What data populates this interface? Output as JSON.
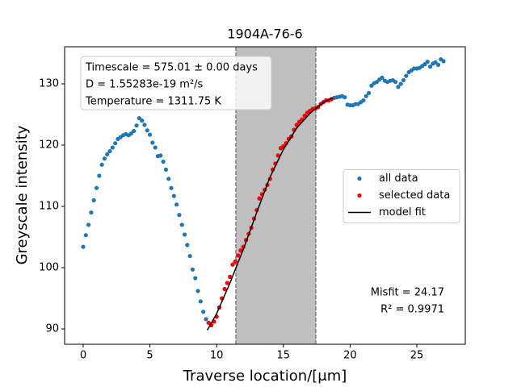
{
  "chart_data": {
    "type": "scatter",
    "title": "1904A-76-6",
    "xlabel": "Traverse location/[μm]",
    "ylabel": "Greyscale intensity",
    "xlim": [
      -1.39,
      28.63
    ],
    "ylim": [
      87.5,
      136.05
    ],
    "xticks": [
      0,
      5,
      10,
      15,
      20,
      25
    ],
    "yticks": [
      90,
      100,
      110,
      120,
      130
    ],
    "span": [
      11.44,
      17.43
    ],
    "annotations": [
      "Timescale = 575.01 ± 0.00 days",
      "D = 1.55283e-19 m²/s",
      "Temperature = 1311.75 K"
    ],
    "stats": [
      "Misfit = 24.17",
      "R² = 0.9971"
    ],
    "legend": "center right",
    "series": [
      {
        "name": "all data",
        "color": "#1f77b4",
        "x": [
          0,
          0.2,
          0.4,
          0.6,
          0.8,
          1.0,
          1.2,
          1.4,
          1.6,
          1.8,
          2.0,
          2.2,
          2.4,
          2.6,
          2.8,
          3.0,
          3.2,
          3.4,
          3.6,
          3.8,
          4.0,
          4.2,
          4.4,
          4.6,
          4.8,
          5.0,
          5.2,
          5.4,
          5.6,
          5.8,
          6.0,
          6.2,
          6.4,
          6.6,
          6.8,
          7.0,
          7.2,
          7.4,
          7.6,
          7.8,
          8.0,
          8.2,
          8.4,
          8.6,
          8.8,
          9.0,
          9.2,
          9.4,
          9.6,
          9.8,
          10.0,
          10.2,
          10.4,
          10.6,
          10.8,
          11.0,
          11.2,
          11.4,
          11.6,
          11.8,
          12.0,
          12.2,
          12.4,
          12.6,
          12.8,
          13.0,
          13.2,
          13.4,
          13.6,
          13.8,
          14.0,
          14.2,
          14.4,
          14.6,
          14.8,
          15.0,
          15.2,
          15.4,
          15.6,
          15.8,
          16.0,
          16.2,
          16.4,
          16.6,
          16.8,
          17.0,
          17.2,
          17.4,
          17.6,
          17.8,
          18.0,
          18.2,
          18.4,
          18.6,
          18.8,
          19.0,
          19.2,
          19.4,
          19.6,
          19.8,
          20.0,
          20.2,
          20.4,
          20.6,
          20.8,
          21.0,
          21.2,
          21.4,
          21.6,
          21.8,
          22.0,
          22.2,
          22.4,
          22.6,
          22.8,
          23.0,
          23.2,
          23.4,
          23.6,
          23.8,
          24.0,
          24.2,
          24.4,
          24.6,
          24.8,
          25.0,
          25.2,
          25.4,
          25.6,
          25.8,
          26.0,
          26.2,
          26.4,
          26.6,
          26.8,
          27.0
        ],
        "values": [
          103.4,
          105.3,
          107,
          109,
          111,
          113,
          115,
          116.8,
          117.8,
          118.5,
          119,
          119.6,
          120.3,
          121,
          121.3,
          121.6,
          121.8,
          121.6,
          121.9,
          122.3,
          123.2,
          124.4,
          124,
          123.3,
          122.4,
          121.7,
          120.4,
          119.6,
          118.2,
          118.3,
          117.3,
          116,
          114.5,
          113,
          111.7,
          110.3,
          108.6,
          107,
          105.4,
          103.7,
          101.9,
          99.7,
          98.3,
          96.2,
          94.5,
          92.8,
          91.6,
          91,
          90.6,
          91.2,
          92,
          93.5,
          95,
          96.5,
          97.5,
          98.5,
          100.5,
          101,
          102,
          102.8,
          103.4,
          104.5,
          105.5,
          106.5,
          108,
          109.4,
          111.3,
          112,
          112.7,
          113.5,
          114.5,
          116,
          117,
          118.3,
          119.5,
          119.8,
          120.3,
          121,
          121.4,
          122.5,
          123.3,
          123.8,
          124.2,
          124.8,
          125.3,
          125.6,
          125.9,
          126,
          126.2,
          126.7,
          127,
          127.3,
          127.3,
          127.5,
          127.7,
          127.8,
          127.9,
          128,
          127.8,
          126.6,
          126.5,
          126.5,
          126.7,
          126.7,
          127,
          127.3,
          128,
          128.5,
          129.7,
          130.1,
          130.3,
          130.7,
          131,
          130.5,
          130.3,
          130.5,
          130.6,
          130.3,
          129.5,
          130,
          130.6,
          131.3,
          131.9,
          132.2,
          132.5,
          132.5,
          132.6,
          132.9,
          133.2,
          133.6,
          132.8,
          133.3,
          133.5,
          133.1,
          134,
          133.7
        ]
      },
      {
        "name": "selected data",
        "color": "#ff0000",
        "x": [
          9.4,
          9.6,
          9.8,
          10.0,
          10.2,
          10.4,
          10.6,
          10.8,
          11.0,
          11.2,
          11.4,
          11.6,
          11.8,
          12.0,
          12.2,
          12.4,
          12.6,
          12.8,
          13.0,
          13.2,
          13.4,
          13.6,
          13.8,
          14.0,
          14.2,
          14.4,
          14.6,
          14.8,
          15.0,
          15.2,
          15.4,
          15.6,
          15.8,
          16.0,
          16.2,
          16.4,
          16.6,
          16.8,
          17.0,
          17.2,
          17.4,
          17.6,
          17.8,
          18.0,
          18.2,
          18.4,
          18.6
        ],
        "values": [
          91,
          90.6,
          91.2,
          92,
          93.5,
          95,
          96.5,
          97.5,
          98.5,
          100.5,
          101,
          102,
          102.8,
          103.4,
          104.5,
          105.5,
          106.5,
          108,
          109.4,
          111.3,
          112,
          112.7,
          113.5,
          114.5,
          116,
          117,
          118.3,
          119.5,
          119.8,
          120.3,
          121,
          121.4,
          122.5,
          123.3,
          123.8,
          124.2,
          124.8,
          125.3,
          125.6,
          125.9,
          126,
          126.2,
          126.7,
          127,
          127.3,
          127.3,
          127.5
        ]
      },
      {
        "name": "model fit",
        "color": "#000000",
        "line": true,
        "x": [
          9.3,
          10,
          11,
          12,
          13,
          14,
          15,
          16,
          17,
          18,
          18.7
        ],
        "values": [
          89.8,
          92.5,
          97.5,
          103,
          109,
          114.8,
          119.3,
          122.8,
          125.2,
          127,
          127.7
        ]
      }
    ]
  }
}
